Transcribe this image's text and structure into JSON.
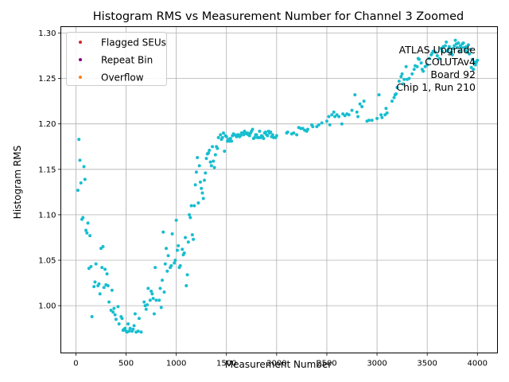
{
  "chart_data": {
    "type": "scatter",
    "title": "Histogram RMS vs Measurement Number for Channel 3 Zoomed",
    "xlabel": "Measurement Number",
    "ylabel": "Histogram RMS",
    "xlim": [
      -150,
      4200
    ],
    "ylim": [
      0.948,
      1.307
    ],
    "xticks": [
      0,
      500,
      1000,
      1500,
      2000,
      2500,
      3000,
      3500,
      4000
    ],
    "yticks": [
      1.0,
      1.05,
      1.1,
      1.15,
      1.2,
      1.25,
      1.3
    ],
    "xtick_labels": [
      "0",
      "500",
      "1000",
      "1500",
      "2000",
      "2500",
      "3000",
      "3500",
      "4000"
    ],
    "ytick_labels": [
      "1.00",
      "1.05",
      "1.10",
      "1.15",
      "1.20",
      "1.25",
      "1.30"
    ],
    "grid": true,
    "legend_position": "top-left",
    "legend": [
      {
        "label": "Flagged SEUs",
        "color": "#d62728"
      },
      {
        "label": "Repeat Bin",
        "color": "#800080"
      },
      {
        "label": "Overflow",
        "color": "#ff7f0e"
      }
    ],
    "annotation": [
      "ATLAS Upgrade",
      "COLUTAv4",
      "Board 92",
      "Chip 1, Run 210"
    ],
    "series": [
      {
        "name": "Histogram RMS",
        "color": "#17becf",
        "points": [
          [
            20,
            1.127
          ],
          [
            30,
            1.183
          ],
          [
            40,
            1.16
          ],
          [
            50,
            1.135
          ],
          [
            60,
            1.095
          ],
          [
            70,
            1.097
          ],
          [
            80,
            1.153
          ],
          [
            90,
            1.139
          ],
          [
            100,
            1.083
          ],
          [
            110,
            1.08
          ],
          [
            120,
            1.091
          ],
          [
            140,
            1.077
          ],
          [
            130,
            1.041
          ],
          [
            150,
            1.043
          ],
          [
            160,
            0.988
          ],
          [
            180,
            1.021
          ],
          [
            190,
            1.026
          ],
          [
            200,
            1.046
          ],
          [
            220,
            1.022
          ],
          [
            230,
            1.024
          ],
          [
            240,
            1.013
          ],
          [
            250,
            1.063
          ],
          [
            260,
            1.042
          ],
          [
            270,
            1.065
          ],
          [
            280,
            1.02
          ],
          [
            290,
            1.04
          ],
          [
            300,
            1.023
          ],
          [
            310,
            1.035
          ],
          [
            320,
            1.022
          ],
          [
            330,
            1.004
          ],
          [
            350,
            0.995
          ],
          [
            360,
            1.017
          ],
          [
            370,
            0.993
          ],
          [
            380,
            0.997
          ],
          [
            390,
            0.99
          ],
          [
            400,
            0.985
          ],
          [
            420,
            0.999
          ],
          [
            430,
            0.98
          ],
          [
            450,
            0.988
          ],
          [
            460,
            0.986
          ],
          [
            470,
            0.973
          ],
          [
            480,
            0.974
          ],
          [
            490,
            0.975
          ],
          [
            500,
            0.972
          ],
          [
            510,
            0.971
          ],
          [
            520,
            0.98
          ],
          [
            530,
            0.972
          ],
          [
            540,
            0.975
          ],
          [
            560,
            0.972
          ],
          [
            570,
            0.974
          ],
          [
            580,
            0.978
          ],
          [
            590,
            0.991
          ],
          [
            600,
            0.971
          ],
          [
            620,
            0.972
          ],
          [
            630,
            0.986
          ],
          [
            650,
            0.971
          ],
          [
            680,
            1.004
          ],
          [
            690,
            1.0
          ],
          [
            700,
            0.996
          ],
          [
            710,
            1.001
          ],
          [
            720,
            1.019
          ],
          [
            740,
            1.006
          ],
          [
            750,
            1.016
          ],
          [
            760,
            1.013
          ],
          [
            770,
            1.008
          ],
          [
            780,
            0.991
          ],
          [
            790,
            1.042
          ],
          [
            800,
            1.006
          ],
          [
            830,
            1.006
          ],
          [
            840,
            1.019
          ],
          [
            850,
            0.998
          ],
          [
            860,
            1.028
          ],
          [
            870,
            1.081
          ],
          [
            880,
            1.015
          ],
          [
            890,
            1.046
          ],
          [
            900,
            1.063
          ],
          [
            910,
            1.038
          ],
          [
            920,
            1.055
          ],
          [
            940,
            1.042
          ],
          [
            950,
            1.044
          ],
          [
            960,
            1.079
          ],
          [
            980,
            1.047
          ],
          [
            990,
            1.05
          ],
          [
            1000,
            1.094
          ],
          [
            1010,
            1.061
          ],
          [
            1020,
            1.066
          ],
          [
            1030,
            1.042
          ],
          [
            1040,
            1.044
          ],
          [
            1060,
            1.062
          ],
          [
            1070,
            1.056
          ],
          [
            1080,
            1.058
          ],
          [
            1090,
            1.075
          ],
          [
            1100,
            1.022
          ],
          [
            1110,
            1.034
          ],
          [
            1120,
            1.07
          ],
          [
            1130,
            1.1
          ],
          [
            1140,
            1.097
          ],
          [
            1150,
            1.11
          ],
          [
            1160,
            1.078
          ],
          [
            1170,
            1.073
          ],
          [
            1180,
            1.11
          ],
          [
            1190,
            1.133
          ],
          [
            1200,
            1.147
          ],
          [
            1210,
            1.163
          ],
          [
            1220,
            1.113
          ],
          [
            1230,
            1.154
          ],
          [
            1240,
            1.136
          ],
          [
            1250,
            1.129
          ],
          [
            1260,
            1.124
          ],
          [
            1270,
            1.118
          ],
          [
            1280,
            1.138
          ],
          [
            1290,
            1.146
          ],
          [
            1300,
            1.162
          ],
          [
            1310,
            1.167
          ],
          [
            1320,
            1.168
          ],
          [
            1330,
            1.171
          ],
          [
            1340,
            1.158
          ],
          [
            1350,
            1.154
          ],
          [
            1360,
            1.175
          ],
          [
            1370,
            1.159
          ],
          [
            1380,
            1.152
          ],
          [
            1390,
            1.166
          ],
          [
            1400,
            1.175
          ],
          [
            1410,
            1.173
          ],
          [
            1420,
            1.185
          ],
          [
            1440,
            1.188
          ],
          [
            1450,
            1.183
          ],
          [
            1460,
            1.185
          ],
          [
            1470,
            1.19
          ],
          [
            1480,
            1.17
          ],
          [
            1490,
            1.187
          ],
          [
            1500,
            1.186
          ],
          [
            1510,
            1.181
          ],
          [
            1520,
            1.183
          ],
          [
            1530,
            1.181
          ],
          [
            1540,
            1.184
          ],
          [
            1550,
            1.181
          ],
          [
            1560,
            1.187
          ],
          [
            1570,
            1.189
          ],
          [
            1580,
            1.188
          ],
          [
            1600,
            1.186
          ],
          [
            1610,
            1.188
          ],
          [
            1620,
            1.188
          ],
          [
            1630,
            1.186
          ],
          [
            1640,
            1.187
          ],
          [
            1650,
            1.19
          ],
          [
            1660,
            1.19
          ],
          [
            1670,
            1.188
          ],
          [
            1680,
            1.192
          ],
          [
            1690,
            1.19
          ],
          [
            1700,
            1.189
          ],
          [
            1710,
            1.19
          ],
          [
            1720,
            1.188
          ],
          [
            1730,
            1.187
          ],
          [
            1740,
            1.19
          ],
          [
            1750,
            1.192
          ],
          [
            1760,
            1.194
          ],
          [
            1770,
            1.184
          ],
          [
            1780,
            1.185
          ],
          [
            1790,
            1.188
          ],
          [
            1800,
            1.188
          ],
          [
            1810,
            1.185
          ],
          [
            1820,
            1.185
          ],
          [
            1830,
            1.192
          ],
          [
            1840,
            1.185
          ],
          [
            1850,
            1.187
          ],
          [
            1860,
            1.186
          ],
          [
            1870,
            1.184
          ],
          [
            1880,
            1.19
          ],
          [
            1890,
            1.191
          ],
          [
            1900,
            1.188
          ],
          [
            1910,
            1.187
          ],
          [
            1920,
            1.192
          ],
          [
            1930,
            1.19
          ],
          [
            1940,
            1.191
          ],
          [
            1950,
            1.186
          ],
          [
            1960,
            1.188
          ],
          [
            1970,
            1.185
          ],
          [
            1990,
            1.185
          ],
          [
            2000,
            1.187
          ],
          [
            2100,
            1.19
          ],
          [
            2110,
            1.191
          ],
          [
            2150,
            1.189
          ],
          [
            2170,
            1.19
          ],
          [
            2200,
            1.188
          ],
          [
            2220,
            1.196
          ],
          [
            2240,
            1.195
          ],
          [
            2260,
            1.195
          ],
          [
            2280,
            1.193
          ],
          [
            2300,
            1.192
          ],
          [
            2310,
            1.194
          ],
          [
            2350,
            1.199
          ],
          [
            2360,
            1.197
          ],
          [
            2400,
            1.197
          ],
          [
            2420,
            1.199
          ],
          [
            2450,
            1.201
          ],
          [
            2500,
            1.203
          ],
          [
            2520,
            1.208
          ],
          [
            2530,
            1.199
          ],
          [
            2550,
            1.21
          ],
          [
            2570,
            1.213
          ],
          [
            2580,
            1.208
          ],
          [
            2600,
            1.21
          ],
          [
            2620,
            1.208
          ],
          [
            2650,
            1.2
          ],
          [
            2660,
            1.211
          ],
          [
            2680,
            1.209
          ],
          [
            2700,
            1.211
          ],
          [
            2720,
            1.21
          ],
          [
            2750,
            1.215
          ],
          [
            2780,
            1.232
          ],
          [
            2800,
            1.213
          ],
          [
            2810,
            1.208
          ],
          [
            2830,
            1.222
          ],
          [
            2850,
            1.219
          ],
          [
            2870,
            1.225
          ],
          [
            2900,
            1.203
          ],
          [
            2920,
            1.204
          ],
          [
            2950,
            1.204
          ],
          [
            3000,
            1.206
          ],
          [
            3020,
            1.232
          ],
          [
            3040,
            1.21
          ],
          [
            3050,
            1.207
          ],
          [
            3080,
            1.21
          ],
          [
            3090,
            1.217
          ],
          [
            3100,
            1.212
          ],
          [
            3150,
            1.225
          ],
          [
            3170,
            1.229
          ],
          [
            3180,
            1.232
          ],
          [
            3190,
            1.233
          ],
          [
            3200,
            1.24
          ],
          [
            3220,
            1.247
          ],
          [
            3240,
            1.252
          ],
          [
            3250,
            1.255
          ],
          [
            3260,
            1.244
          ],
          [
            3270,
            1.249
          ],
          [
            3290,
            1.263
          ],
          [
            3300,
            1.249
          ],
          [
            3320,
            1.25
          ],
          [
            3350,
            1.255
          ],
          [
            3370,
            1.26
          ],
          [
            3380,
            1.264
          ],
          [
            3400,
            1.263
          ],
          [
            3410,
            1.272
          ],
          [
            3420,
            1.271
          ],
          [
            3440,
            1.267
          ],
          [
            3450,
            1.26
          ],
          [
            3460,
            1.258
          ],
          [
            3480,
            1.263
          ],
          [
            3500,
            1.265
          ],
          [
            3520,
            1.272
          ],
          [
            3540,
            1.276
          ],
          [
            3550,
            1.278
          ],
          [
            3560,
            1.28
          ],
          [
            3580,
            1.279
          ],
          [
            3600,
            1.275
          ],
          [
            3620,
            1.272
          ],
          [
            3640,
            1.283
          ],
          [
            3650,
            1.28
          ],
          [
            3660,
            1.285
          ],
          [
            3680,
            1.286
          ],
          [
            3690,
            1.29
          ],
          [
            3700,
            1.28
          ],
          [
            3710,
            1.282
          ],
          [
            3720,
            1.285
          ],
          [
            3730,
            1.278
          ],
          [
            3740,
            1.279
          ],
          [
            3750,
            1.276
          ],
          [
            3760,
            1.283
          ],
          [
            3770,
            1.286
          ],
          [
            3780,
            1.292
          ],
          [
            3790,
            1.288
          ],
          [
            3800,
            1.284
          ],
          [
            3810,
            1.289
          ],
          [
            3820,
            1.28
          ],
          [
            3830,
            1.286
          ],
          [
            3840,
            1.284
          ],
          [
            3850,
            1.288
          ],
          [
            3860,
            1.289
          ],
          [
            3870,
            1.284
          ],
          [
            3880,
            1.281
          ],
          [
            3890,
            1.285
          ],
          [
            3900,
            1.279
          ],
          [
            3910,
            1.287
          ],
          [
            3920,
            1.277
          ],
          [
            3930,
            1.282
          ],
          [
            3940,
            1.262
          ],
          [
            3950,
            1.271
          ],
          [
            3960,
            1.26
          ],
          [
            3970,
            1.268
          ],
          [
            3980,
            1.265
          ],
          [
            3990,
            1.268
          ],
          [
            4000,
            1.27
          ]
        ]
      }
    ]
  }
}
